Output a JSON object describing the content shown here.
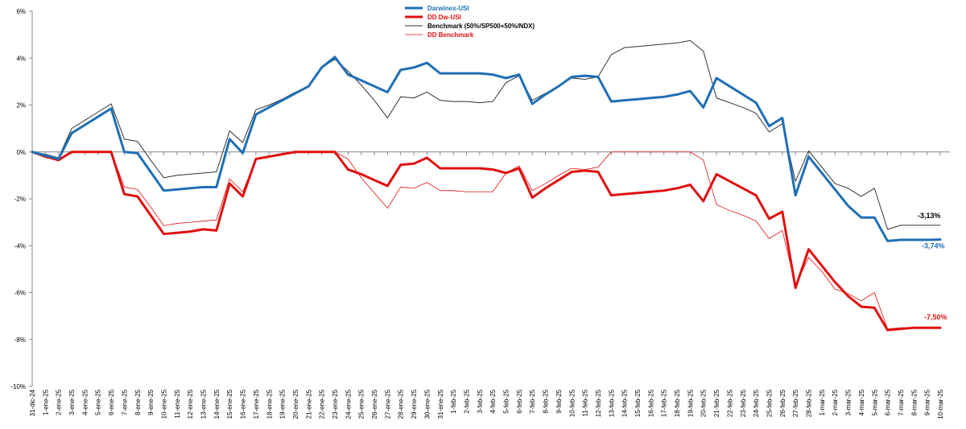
{
  "chart_data": {
    "type": "line",
    "title": "",
    "xlabel": "",
    "ylabel": "",
    "ylim": [
      -10,
      6
    ],
    "yticks": [
      6,
      4,
      2,
      0,
      -2,
      -4,
      -6,
      -8,
      -10
    ],
    "ytick_labels": [
      "6%",
      "4%",
      "2%",
      "0%",
      "-2%",
      "-4%",
      "-6%",
      "-8%",
      "-10%"
    ],
    "grid": false,
    "legend_position": "top-center",
    "categories": [
      "31-dic-24",
      "1-ene-25",
      "2-ene-25",
      "3-ene-25",
      "4-ene-25",
      "5-ene-25",
      "6-ene-25",
      "7-ene-25",
      "8-ene-25",
      "9-ene-25",
      "10-ene-25",
      "11-ene-25",
      "12-ene-25",
      "13-ene-25",
      "14-ene-25",
      "15-ene-25",
      "16-ene-25",
      "17-ene-25",
      "18-ene-25",
      "19-ene-25",
      "20-ene-25",
      "21-ene-25",
      "22-ene-25",
      "23-ene-25",
      "24-ene-25",
      "25-ene-25",
      "26-ene-25",
      "27-ene-25",
      "28-ene-25",
      "29-ene-25",
      "30-ene-25",
      "31-ene-25",
      "1-feb-25",
      "2-feb-25",
      "3-feb-25",
      "4-feb-25",
      "5-feb-25",
      "6-feb-25",
      "7-feb-25",
      "8-feb-25",
      "9-feb-25",
      "10-feb-25",
      "11-feb-25",
      "12-feb-25",
      "13-feb-25",
      "14-feb-25",
      "15-feb-25",
      "16-feb-25",
      "17-feb-25",
      "18-feb-25",
      "19-feb-25",
      "20-feb-25",
      "21-feb-25",
      "22-feb-25",
      "23-feb-25",
      "24-feb-25",
      "25-feb-25",
      "26-feb-25",
      "27-feb-25",
      "28-feb-25",
      "1-mar-25",
      "2-mar-25",
      "3-mar-25",
      "4-mar-25",
      "5-mar-25",
      "6-mar-25",
      "7-mar-25",
      "8-mar-25",
      "9-mar-25",
      "10-mar-25"
    ],
    "series": [
      {
        "name": "Darwinex-USI",
        "color": "#1f6fb5",
        "width": 3,
        "values": [
          0,
          -0.15,
          -0.3,
          0.8,
          1.15,
          1.5,
          1.85,
          0.0,
          -0.05,
          -0.85,
          -1.65,
          -1.6,
          -1.55,
          -1.5,
          -1.5,
          0.55,
          -0.05,
          1.6,
          1.9,
          2.2,
          2.5,
          2.8,
          3.6,
          4.05,
          3.3,
          3.05,
          2.8,
          2.55,
          3.5,
          3.6,
          3.8,
          3.35,
          3.35,
          3.35,
          3.35,
          3.3,
          3.15,
          3.3,
          2.05,
          2.45,
          2.8,
          3.2,
          3.25,
          3.2,
          2.15,
          2.2,
          2.25,
          2.3,
          2.35,
          2.45,
          2.6,
          1.9,
          3.15,
          2.8,
          2.45,
          2.1,
          1.1,
          1.45,
          -1.85,
          -0.2,
          -0.9,
          -1.6,
          -2.3,
          -2.8,
          -2.8,
          -3.8,
          -3.75,
          -3.75,
          -3.75,
          -3.74
        ]
      },
      {
        "name": "DD Dw-USI",
        "color": "#e01010",
        "width": 3,
        "values": [
          0,
          -0.2,
          -0.35,
          0,
          0,
          0,
          0,
          -1.8,
          -1.9,
          -2.7,
          -3.5,
          -3.45,
          -3.4,
          -3.3,
          -3.35,
          -1.35,
          -1.9,
          -0.3,
          -0.2,
          -0.1,
          0,
          0,
          0,
          0,
          -0.75,
          -0.95,
          -1.2,
          -1.45,
          -0.55,
          -0.5,
          -0.25,
          -0.7,
          -0.7,
          -0.7,
          -0.7,
          -0.75,
          -0.9,
          -0.7,
          -1.95,
          -1.55,
          -1.2,
          -0.85,
          -0.8,
          -0.85,
          -1.85,
          -1.8,
          -1.75,
          -1.7,
          -1.65,
          -1.55,
          -1.4,
          -2.1,
          -0.95,
          -1.25,
          -1.55,
          -1.85,
          -2.85,
          -2.55,
          -5.8,
          -4.15,
          -4.85,
          -5.55,
          -6.15,
          -6.6,
          -6.65,
          -7.6,
          -7.55,
          -7.5,
          -7.5,
          -7.5
        ]
      },
      {
        "name": "Benchmark (50%/SP500+50%/NDX)",
        "color": "#333333",
        "width": 1,
        "values": [
          0,
          -0.1,
          -0.25,
          1.0,
          1.35,
          1.7,
          2.05,
          0.55,
          0.45,
          -0.35,
          -1.1,
          -1.0,
          -0.95,
          -0.9,
          -0.85,
          0.9,
          0.4,
          1.8,
          2.0,
          2.25,
          2.55,
          2.8,
          3.6,
          3.95,
          3.45,
          2.85,
          2.2,
          1.45,
          2.35,
          2.3,
          2.55,
          2.2,
          2.15,
          2.15,
          2.1,
          2.15,
          2.95,
          3.25,
          2.2,
          2.5,
          2.8,
          3.15,
          3.1,
          3.2,
          4.15,
          4.45,
          4.5,
          4.55,
          4.6,
          4.65,
          4.75,
          4.3,
          2.3,
          2.1,
          1.9,
          1.65,
          0.85,
          1.2,
          -1.25,
          0.05,
          -0.65,
          -1.35,
          -1.55,
          -1.9,
          -1.55,
          -3.3,
          -3.13,
          -3.13,
          -3.13,
          -3.13
        ]
      },
      {
        "name": "DD Benchmark",
        "color": "#e01010",
        "width": 0.8,
        "values": [
          0,
          -0.15,
          -0.3,
          0,
          0,
          0,
          0,
          -1.5,
          -1.6,
          -2.35,
          -3.15,
          -3.05,
          -3.0,
          -2.95,
          -2.9,
          -1.15,
          -1.7,
          -0.3,
          -0.2,
          -0.1,
          0,
          0,
          0,
          0,
          -0.3,
          -1.1,
          -1.75,
          -2.4,
          -1.5,
          -1.55,
          -1.3,
          -1.65,
          -1.65,
          -1.7,
          -1.7,
          -1.7,
          -0.9,
          -0.6,
          -1.65,
          -1.35,
          -1.0,
          -0.7,
          -0.75,
          -0.65,
          0,
          0,
          0,
          0,
          0,
          0,
          0,
          -0.35,
          -2.25,
          -2.5,
          -2.7,
          -2.95,
          -3.7,
          -3.35,
          -5.7,
          -4.5,
          -5.1,
          -5.85,
          -6.05,
          -6.35,
          -6.0,
          -7.55,
          -7.5,
          -7.5,
          -7.5,
          -7.5
        ]
      }
    ],
    "end_labels": [
      {
        "text": "-3,13%",
        "color": "#000000",
        "series": 2
      },
      {
        "text": "-3,74%",
        "color": "#1f6fb5",
        "series": 0
      },
      {
        "text": "-7,50%",
        "color": "#e01010",
        "series": 1
      }
    ]
  }
}
